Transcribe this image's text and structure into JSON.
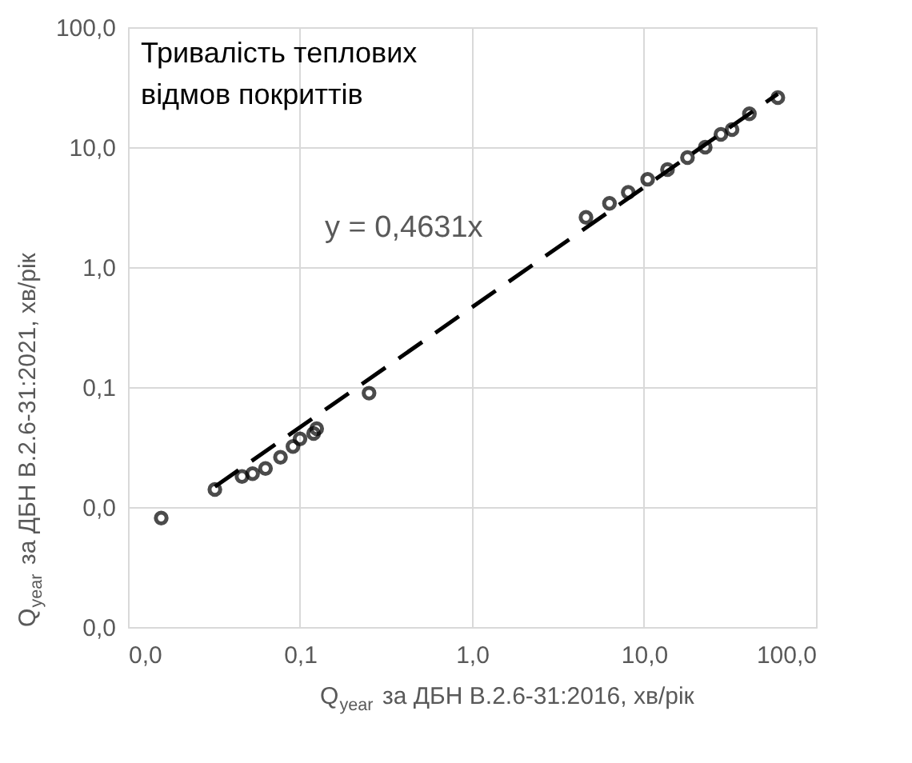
{
  "chart_data": {
    "type": "scatter",
    "xlabel": "Q$_{year}$ за ДБН В.2.6-31:2016, хв/рік",
    "ylabel": "Q$_{year}$ за ДБН В.2.6-31:2021,  хв/рік",
    "log": "xy",
    "grid": true,
    "marker": "circle",
    "xlim": [
      0.01,
      100
    ],
    "ylim": [
      0.001,
      100
    ],
    "xticks": [
      {
        "value": 0.01,
        "label": "0,0"
      },
      {
        "value": 0.1,
        "label": "0,1"
      },
      {
        "value": 1,
        "label": "1,0"
      },
      {
        "value": 10,
        "label": "10,0"
      },
      {
        "value": 100,
        "label": "100,0"
      }
    ],
    "yticks": [
      {
        "value": 0.001,
        "label": "0,0"
      },
      {
        "value": 0.01,
        "label": "0,0"
      },
      {
        "value": 0.1,
        "label": "0,1"
      },
      {
        "value": 1,
        "label": "1,0"
      },
      {
        "value": 10,
        "label": "10,0"
      },
      {
        "value": 100,
        "label": "100,0"
      }
    ],
    "annotations": [
      "Тривалість теплових відмов покриттів",
      "y = 0,4631x"
    ],
    "series": [
      {
        "color": "#000000",
        "x": [
          0.0156,
          0.032,
          0.046,
          0.053,
          0.063,
          0.077,
          0.091,
          0.1,
          0.12,
          0.125,
          0.252,
          4.6,
          6.3,
          8.1,
          10.5,
          13.7,
          17.9,
          22.7,
          28,
          32.5,
          41,
          60
        ],
        "values": [
          0.0081,
          0.014,
          0.018,
          0.019,
          0.021,
          0.026,
          0.032,
          0.037,
          0.041,
          0.045,
          0.089,
          2.6,
          3.4,
          4.2,
          5.4,
          6.5,
          8.2,
          10,
          12.8,
          14,
          19,
          25.9
        ]
      },
      {
        "type": "line",
        "marker": "none",
        "color": "#000000",
        "line_style": "dashed",
        "x": [
          0.032,
          60
        ],
        "values": [
          0.0148,
          27.8
        ]
      }
    ]
  }
}
